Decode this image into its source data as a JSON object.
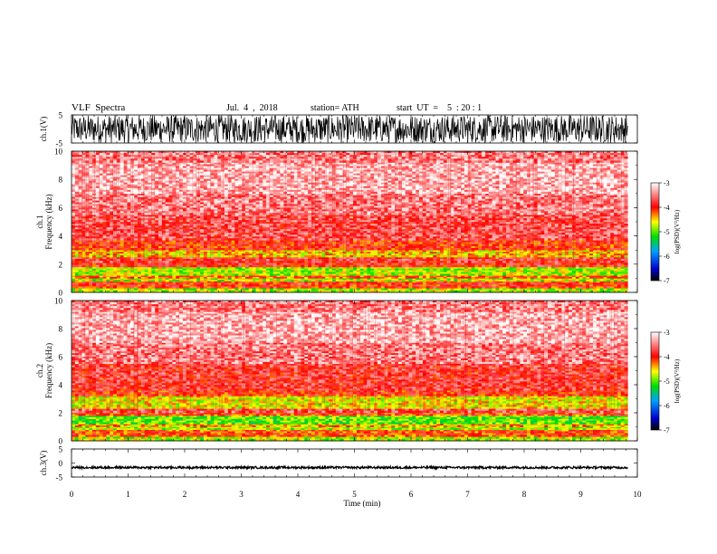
{
  "header": {
    "title": "VLF  Spectra",
    "date": "Jul.  4  ,  2018",
    "station": "station= ATH",
    "start": "start  UT  =    5  : 20 : 1"
  },
  "colors": {
    "colormap": [
      "#000000",
      "#0000cc",
      "#00a0ff",
      "#00dd00",
      "#ffff00",
      "#ff0000",
      "#ffffff"
    ],
    "waveform": "#000000"
  },
  "chart_data": [
    {
      "type": "line",
      "name": "ch1-waveform",
      "ylabel": "ch.1(V)",
      "ylim": [
        -5,
        5
      ],
      "yticks": [
        "5",
        "-5"
      ],
      "x_range_min": [
        0,
        9.83
      ],
      "amplitude_V": 5,
      "description": "dense broadband noise"
    },
    {
      "type": "heatmap",
      "name": "ch1-spectrogram",
      "ylabel": "ch.1\nFrequency  (kHz)",
      "ylim": [
        0,
        10
      ],
      "yticks": [
        "0",
        "2",
        "4",
        "6",
        "8",
        "10"
      ],
      "x_range_min": [
        0,
        9.83
      ],
      "colorbar": {
        "label": "log(PSD)(V²/Hz)",
        "range": [
          -7,
          -3
        ],
        "ticks": [
          "-3",
          "-4",
          "-5",
          "-6",
          "-7"
        ]
      },
      "bands": [
        {
          "f_kHz": [
            0.0,
            0.3
          ],
          "log_psd": -4.8
        },
        {
          "f_kHz": [
            0.3,
            0.8
          ],
          "log_psd": -4.0
        },
        {
          "f_kHz": [
            0.8,
            1.0
          ],
          "log_psd": -4.8
        },
        {
          "f_kHz": [
            1.0,
            1.2
          ],
          "log_psd": -4.2
        },
        {
          "f_kHz": [
            1.2,
            1.8
          ],
          "log_psd": -4.8
        },
        {
          "f_kHz": [
            1.8,
            2.1
          ],
          "log_psd": -3.9
        },
        {
          "f_kHz": [
            2.1,
            2.5
          ],
          "log_psd": -3.8
        },
        {
          "f_kHz": [
            2.5,
            3.0
          ],
          "log_psd": -4.5
        },
        {
          "f_kHz": [
            3.0,
            3.7
          ],
          "log_psd": -4.0
        },
        {
          "f_kHz": [
            3.7,
            5.5
          ],
          "log_psd": -3.7
        },
        {
          "f_kHz": [
            5.5,
            7.0
          ],
          "log_psd": -3.5
        },
        {
          "f_kHz": [
            7.0,
            9.2
          ],
          "log_psd": -3.3
        },
        {
          "f_kHz": [
            9.2,
            10.0
          ],
          "log_psd": -3.5
        }
      ]
    },
    {
      "type": "heatmap",
      "name": "ch2-spectrogram",
      "ylabel": "ch.2\nFrequency  (kHz)",
      "ylim": [
        0,
        10
      ],
      "yticks": [
        "0",
        "2",
        "4",
        "6",
        "8",
        "10"
      ],
      "x_range_min": [
        0,
        9.83
      ],
      "colorbar": {
        "label": "log(PSD)(V²/Hz)",
        "range": [
          -7,
          -3
        ],
        "ticks": [
          "-3",
          "-4",
          "-5",
          "-6",
          "-7"
        ]
      },
      "bands": [
        {
          "f_kHz": [
            0.0,
            0.3
          ],
          "log_psd": -4.8
        },
        {
          "f_kHz": [
            0.3,
            0.8
          ],
          "log_psd": -4.1
        },
        {
          "f_kHz": [
            0.8,
            1.0
          ],
          "log_psd": -4.8
        },
        {
          "f_kHz": [
            1.0,
            1.2
          ],
          "log_psd": -4.4
        },
        {
          "f_kHz": [
            1.2,
            1.8
          ],
          "log_psd": -5.0
        },
        {
          "f_kHz": [
            1.8,
            2.0
          ],
          "log_psd": -4.1
        },
        {
          "f_kHz": [
            2.0,
            2.3
          ],
          "log_psd": -3.7
        },
        {
          "f_kHz": [
            2.3,
            3.2
          ],
          "log_psd": -4.6
        },
        {
          "f_kHz": [
            3.2,
            3.6
          ],
          "log_psd": -4.0
        },
        {
          "f_kHz": [
            3.6,
            5.5
          ],
          "log_psd": -3.8
        },
        {
          "f_kHz": [
            5.5,
            7.0
          ],
          "log_psd": -3.5
        },
        {
          "f_kHz": [
            7.0,
            9.2
          ],
          "log_psd": -3.3
        },
        {
          "f_kHz": [
            9.2,
            10.0
          ],
          "log_psd": -3.5
        }
      ]
    },
    {
      "type": "line",
      "name": "ch3-waveform",
      "ylabel": "ch.3(V)",
      "ylim": [
        -5,
        5
      ],
      "yticks": [
        "5",
        "0",
        "-5"
      ],
      "x_range_min": [
        0,
        9.83
      ],
      "amplitude_V": 0.4,
      "offset_V": -1.6,
      "description": "nearly flat trace"
    }
  ],
  "xaxis": {
    "label": "Time  (min)",
    "lim": [
      0,
      10
    ],
    "ticks": [
      "0",
      "1",
      "2",
      "3",
      "4",
      "5",
      "6",
      "7",
      "8",
      "9",
      "10"
    ]
  }
}
